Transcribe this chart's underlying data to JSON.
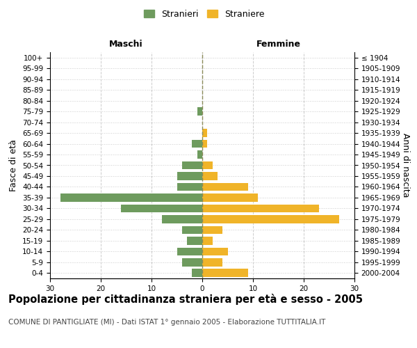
{
  "age_groups": [
    "100+",
    "95-99",
    "90-94",
    "85-89",
    "80-84",
    "75-79",
    "70-74",
    "65-69",
    "60-64",
    "55-59",
    "50-54",
    "45-49",
    "40-44",
    "35-39",
    "30-34",
    "25-29",
    "20-24",
    "15-19",
    "10-14",
    "5-9",
    "0-4"
  ],
  "birth_years": [
    "≤ 1904",
    "1905-1909",
    "1910-1914",
    "1915-1919",
    "1920-1924",
    "1925-1929",
    "1930-1934",
    "1935-1939",
    "1940-1944",
    "1945-1949",
    "1950-1954",
    "1955-1959",
    "1960-1964",
    "1965-1969",
    "1970-1974",
    "1975-1979",
    "1980-1984",
    "1985-1989",
    "1990-1994",
    "1995-1999",
    "2000-2004"
  ],
  "males": [
    0,
    0,
    0,
    0,
    0,
    1,
    0,
    0,
    2,
    1,
    4,
    5,
    5,
    28,
    16,
    8,
    4,
    3,
    5,
    4,
    2
  ],
  "females": [
    0,
    0,
    0,
    0,
    0,
    0,
    0,
    1,
    1,
    0,
    2,
    3,
    9,
    11,
    23,
    27,
    4,
    2,
    5,
    4,
    9
  ],
  "male_color": "#6e9b5e",
  "female_color": "#f0b429",
  "background_color": "#ffffff",
  "grid_color": "#cccccc",
  "dashed_line_color": "#8b8b5a",
  "xlim": 30,
  "title": "Popolazione per cittadinanza straniera per età e sesso - 2005",
  "subtitle": "COMUNE DI PANTIGLIATE (MI) - Dati ISTAT 1° gennaio 2005 - Elaborazione TUTTITALIA.IT",
  "xlabel_left": "Maschi",
  "xlabel_right": "Femmine",
  "ylabel_left": "Fasce di età",
  "ylabel_right": "Anni di nascita",
  "legend_stranieri": "Stranieri",
  "legend_straniere": "Straniere",
  "tick_fontsize": 7.5,
  "label_fontsize": 9,
  "title_fontsize": 10.5,
  "subtitle_fontsize": 7.5
}
